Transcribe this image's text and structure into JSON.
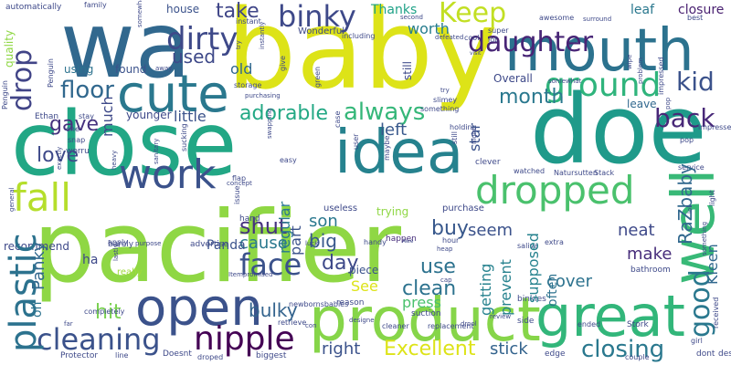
{
  "words": [
    {
      "text": "pacifier",
      "color": "#8fd744"
    },
    {
      "text": "baby",
      "color": "#dde318"
    },
    {
      "text": "close",
      "color": "#22a785"
    },
    {
      "text": "doe",
      "color": "#1f9a8a"
    },
    {
      "text": "wa",
      "color": "#31688e"
    },
    {
      "text": "mouth",
      "color": "#2c728e"
    },
    {
      "text": "product",
      "color": "#86d549"
    },
    {
      "text": "great",
      "color": "#32b67a"
    },
    {
      "text": "open",
      "color": "#3b528b"
    },
    {
      "text": "cute",
      "color": "#2a788e"
    },
    {
      "text": "well",
      "color": "#38b977"
    },
    {
      "text": "idea",
      "color": "#26828e"
    },
    {
      "text": "work",
      "color": "#3b528b"
    },
    {
      "text": "fall",
      "color": "#b5de2b"
    },
    {
      "text": "plastic",
      "color": "#2c728e"
    },
    {
      "text": "dropped",
      "color": "#4ac16d"
    },
    {
      "text": "nipple",
      "color": "#440154"
    },
    {
      "text": "ground",
      "color": "#2fb47c"
    },
    {
      "text": "dirty",
      "color": "#3e4989"
    },
    {
      "text": "binky",
      "color": "#3e4989"
    },
    {
      "text": "cleaning",
      "color": "#3b528b"
    },
    {
      "text": "face",
      "color": "#3b528b"
    },
    {
      "text": "Keep",
      "color": "#c2df23"
    },
    {
      "text": "daughter",
      "color": "#482576"
    },
    {
      "text": "good",
      "color": "#2a788e"
    },
    {
      "text": "closing",
      "color": "#2a788e"
    },
    {
      "text": "Excellent",
      "color": "#dde318"
    },
    {
      "text": "drop",
      "color": "#414487"
    },
    {
      "text": "floor",
      "color": "#31688e"
    },
    {
      "text": "kid",
      "color": "#3b528b"
    },
    {
      "text": "month",
      "color": "#2a788e"
    },
    {
      "text": "back",
      "color": "#482878"
    },
    {
      "text": "always",
      "color": "#35b779"
    },
    {
      "text": "adorable",
      "color": "#22a884"
    },
    {
      "text": "love",
      "color": "#3e4989"
    },
    {
      "text": "used",
      "color": "#3e4989"
    },
    {
      "text": "take",
      "color": "#404688"
    },
    {
      "text": "shut",
      "color": "#46337e"
    },
    {
      "text": "gave",
      "color": "#46327e"
    },
    {
      "text": "hit",
      "color": "#7ad151"
    },
    {
      "text": "cause",
      "color": "#2a788e"
    },
    {
      "text": "buy",
      "color": "#38588c"
    },
    {
      "text": "clean",
      "color": "#2c728e"
    },
    {
      "text": "use",
      "color": "#2c728e"
    },
    {
      "text": "right",
      "color": "#3b528b"
    },
    {
      "text": "stick",
      "color": "#33638d"
    },
    {
      "text": "bulky",
      "color": "#33638d"
    },
    {
      "text": "neat",
      "color": "#3e4989"
    },
    {
      "text": "make",
      "color": "#472d7b"
    },
    {
      "text": "cover",
      "color": "#2c728e"
    },
    {
      "text": "son",
      "color": "#2a788e"
    },
    {
      "text": "big",
      "color": "#38588c"
    },
    {
      "text": "day",
      "color": "#3e4989"
    },
    {
      "text": "left",
      "color": "#38588c"
    },
    {
      "text": "seem",
      "color": "#3b528b"
    },
    {
      "text": "little",
      "color": "#3b528b"
    },
    {
      "text": "much",
      "color": "#3e4989"
    },
    {
      "text": "worth",
      "color": "#287d8e"
    },
    {
      "text": "Thanks",
      "color": "#1fa287"
    },
    {
      "text": "leaf",
      "color": "#2a788e"
    },
    {
      "text": "closure",
      "color": "#481f70"
    },
    {
      "text": "leave",
      "color": "#31688e"
    },
    {
      "text": "star",
      "color": "#3b528b"
    },
    {
      "text": "Overall",
      "color": "#3e4989"
    },
    {
      "text": "old",
      "color": "#31688e"
    },
    {
      "text": "house",
      "color": "#3b528b"
    },
    {
      "text": "found",
      "color": "#3b528b"
    },
    {
      "text": "using",
      "color": "#2c728e"
    },
    {
      "text": "younger",
      "color": "#3e4989"
    },
    {
      "text": "Panda",
      "color": "#3b528b"
    },
    {
      "text": "Panky",
      "color": "#31688e"
    },
    {
      "text": "oh",
      "color": "#2c728e"
    },
    {
      "text": "ha",
      "color": "#3e4989"
    },
    {
      "text": "piece",
      "color": "#3b528b"
    },
    {
      "text": "See",
      "color": "#dde318"
    },
    {
      "text": "press",
      "color": "#4ac16d"
    },
    {
      "text": "getting",
      "color": "#26828e"
    },
    {
      "text": "prevent",
      "color": "#26828e"
    },
    {
      "text": "supposed",
      "color": "#26828e"
    },
    {
      "text": "often",
      "color": "#2c728e"
    },
    {
      "text": "RaZbaby",
      "color": "#31688e"
    },
    {
      "text": "Kleen",
      "color": "#31688e"
    },
    {
      "text": "part",
      "color": "#3b528b"
    },
    {
      "text": "regular",
      "color": "#2a788e"
    },
    {
      "text": "offered",
      "color": "#3e4989"
    },
    {
      "text": "trying",
      "color": "#8fd744"
    },
    {
      "text": "recommend",
      "color": "#3e4989"
    },
    {
      "text": "really",
      "color": "#a0da39"
    },
    {
      "text": "quality",
      "color": "#8fd744"
    },
    {
      "text": "automatically",
      "color": "#3e4989"
    },
    {
      "text": "family",
      "color": "#3e4989"
    },
    {
      "text": "Wonderful",
      "color": "#3e4989"
    },
    {
      "text": "useless",
      "color": "#3e4989"
    },
    {
      "text": "purchase",
      "color": "#3e4989"
    },
    {
      "text": "happen",
      "color": "#472d7b"
    },
    {
      "text": "bathroom",
      "color": "#3e4989"
    },
    {
      "text": "Protector",
      "color": "#3e4989"
    },
    {
      "text": "biggest",
      "color": "#3e4989"
    },
    {
      "text": "droped",
      "color": "#3e4989"
    },
    {
      "text": "Doesnt",
      "color": "#3e4989"
    },
    {
      "text": "edge",
      "color": "#3e4989"
    },
    {
      "text": "side",
      "color": "#3e4989"
    },
    {
      "text": "dont",
      "color": "#3e4989"
    },
    {
      "text": "design",
      "color": "#3e4989"
    },
    {
      "text": "ended",
      "color": "#3e4989"
    },
    {
      "text": "couple",
      "color": "#3e4989"
    },
    {
      "text": "girl",
      "color": "#3e4989"
    },
    {
      "text": "binkies",
      "color": "#3e4989"
    },
    {
      "text": "Stork",
      "color": "#3e4989"
    },
    {
      "text": "reason",
      "color": "#3e4989"
    },
    {
      "text": "suction",
      "color": "#3e4989"
    },
    {
      "text": "cleaner",
      "color": "#3e4989"
    },
    {
      "text": "replacement",
      "color": "#3e4989"
    },
    {
      "text": "drool",
      "color": "#3e4989"
    },
    {
      "text": "retrieve",
      "color": "#3e4989"
    },
    {
      "text": "newbornsbabies",
      "color": "#3e4989"
    },
    {
      "text": "con",
      "color": "#3e4989"
    },
    {
      "text": "Itempromised",
      "color": "#3e4989"
    },
    {
      "text": "hand",
      "color": "#3e4989"
    },
    {
      "text": "apply",
      "color": "#3e4989"
    },
    {
      "text": "barely",
      "color": "#3e4989"
    },
    {
      "text": "advertise",
      "color": "#3e4989"
    },
    {
      "text": "purpose",
      "color": "#3e4989"
    },
    {
      "text": "luck",
      "color": "#3e4989"
    },
    {
      "text": "handy",
      "color": "#3e4989"
    },
    {
      "text": "hour",
      "color": "#3e4989"
    },
    {
      "text": "saliva",
      "color": "#3e4989"
    },
    {
      "text": "extra",
      "color": "#3e4989"
    },
    {
      "text": "watched",
      "color": "#3e4989"
    },
    {
      "text": "Natursutten",
      "color": "#3e4989"
    },
    {
      "text": "Stack",
      "color": "#3e4989"
    },
    {
      "text": "service",
      "color": "#3e4989"
    },
    {
      "text": "clever",
      "color": "#3e4989"
    },
    {
      "text": "Ethan",
      "color": "#3e4989"
    },
    {
      "text": "snap",
      "color": "#3e4989"
    },
    {
      "text": "worru",
      "color": "#3e4989"
    },
    {
      "text": "stay",
      "color": "#3e4989"
    },
    {
      "text": "one",
      "color": "#3e4989"
    },
    {
      "text": "easy",
      "color": "#3e4989"
    },
    {
      "text": "flap",
      "color": "#3e4989"
    },
    {
      "text": "concept",
      "color": "#3e4989"
    },
    {
      "text": "Penguin",
      "color": "#3e4989"
    },
    {
      "text": "instant",
      "color": "#3e4989"
    },
    {
      "text": "including",
      "color": "#3e4989"
    },
    {
      "text": "defeated",
      "color": "#3e4989"
    },
    {
      "text": "cool",
      "color": "#3e4989"
    },
    {
      "text": "super",
      "color": "#3e4989"
    },
    {
      "text": "lot",
      "color": "#3e4989"
    },
    {
      "text": "second",
      "color": "#3e4989"
    },
    {
      "text": "awesome",
      "color": "#3e4989"
    },
    {
      "text": "surround",
      "color": "#3e4989"
    },
    {
      "text": "best",
      "color": "#3e4989"
    },
    {
      "text": "wipe",
      "color": "#3e4989"
    },
    {
      "text": "problem",
      "color": "#3e4989"
    },
    {
      "text": "impressed",
      "color": "#3e4989"
    },
    {
      "text": "pop",
      "color": "#3e4989"
    },
    {
      "text": "light",
      "color": "#3e4989"
    },
    {
      "text": "lol",
      "color": "#3e4989"
    },
    {
      "text": "received",
      "color": "#3e4989"
    },
    {
      "text": "slimey",
      "color": "#3e4989"
    },
    {
      "text": "something",
      "color": "#3e4989"
    },
    {
      "text": "holding",
      "color": "#3e4989"
    },
    {
      "text": "still",
      "color": "#3e4989"
    },
    {
      "text": "night",
      "color": "#3e4989"
    },
    {
      "text": "maybe",
      "color": "#3e4989"
    },
    {
      "text": "user",
      "color": "#3e4989"
    },
    {
      "text": "case",
      "color": "#3e4989"
    },
    {
      "text": "swapping",
      "color": "#3e4989"
    },
    {
      "text": "sucking",
      "color": "#3e4989"
    },
    {
      "text": "sanitary",
      "color": "#3e4989"
    },
    {
      "text": "heavy",
      "color": "#3e4989"
    },
    {
      "text": "exactly",
      "color": "#3e4989"
    },
    {
      "text": "general",
      "color": "#3e4989"
    },
    {
      "text": "lastly",
      "color": "#3e4989"
    },
    {
      "text": "imprint",
      "color": "#3e4989"
    },
    {
      "text": "likely",
      "color": "#3e4989"
    },
    {
      "text": "completely",
      "color": "#3e4989"
    },
    {
      "text": "far",
      "color": "#3e4989"
    },
    {
      "text": "storage",
      "color": "#3e4989"
    },
    {
      "text": "purchasing",
      "color": "#3e4989"
    },
    {
      "text": "green",
      "color": "#3e4989"
    },
    {
      "text": "give",
      "color": "#3e4989"
    },
    {
      "text": "instantly",
      "color": "#3e4989"
    },
    {
      "text": "away",
      "color": "#3e4989"
    },
    {
      "text": "visit",
      "color": "#3e4989"
    },
    {
      "text": "try",
      "color": "#3e4989"
    },
    {
      "text": "somewhat",
      "color": "#3e4989"
    },
    {
      "text": "issue",
      "color": "#3e4989"
    },
    {
      "text": "heap",
      "color": "#3e4989"
    },
    {
      "text": "cap",
      "color": "#3e4989"
    },
    {
      "text": "Awe",
      "color": "#3e4989"
    },
    {
      "text": "designe",
      "color": "#3e4989"
    },
    {
      "text": "review",
      "color": "#3e4989"
    },
    {
      "text": "line",
      "color": "#3e4989"
    },
    {
      "text": "amazing",
      "color": "#3e4989"
    },
    {
      "text": "laid",
      "color": "#3e4989"
    },
    {
      "text": "anger",
      "color": "#3e4989"
    },
    {
      "text": "color",
      "color": "#3e4989"
    }
  ]
}
